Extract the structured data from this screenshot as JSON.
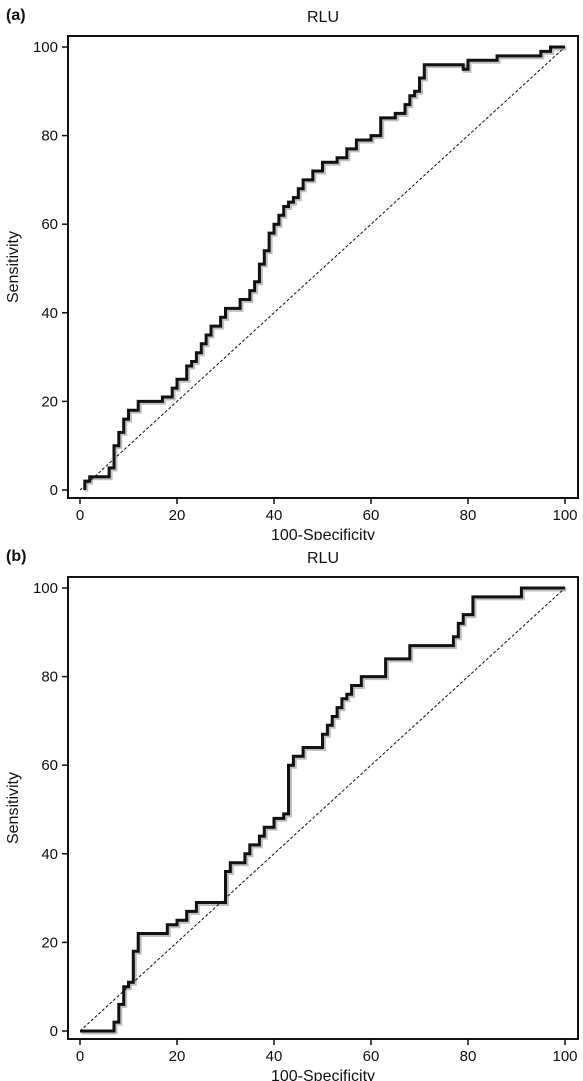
{
  "chart_data": [
    {
      "type": "line",
      "panel_label": "(a)",
      "title": "RLU",
      "xlabel": "100-Specificity",
      "ylabel": "Sensitivity",
      "xlim": [
        0,
        100
      ],
      "ylim": [
        0,
        100
      ],
      "xticks": [
        0,
        20,
        40,
        60,
        80,
        100
      ],
      "yticks": [
        0,
        20,
        40,
        60,
        80,
        100
      ],
      "reference_line": {
        "x": [
          0,
          100
        ],
        "y": [
          0,
          100
        ],
        "style": "dashed"
      },
      "series": [
        {
          "x": [
            1,
            1,
            2,
            2,
            6,
            6,
            7,
            7,
            8,
            8,
            9,
            9,
            10,
            10,
            12,
            12,
            17,
            17,
            19,
            19,
            20,
            20,
            22,
            22,
            23,
            23,
            24,
            24,
            25,
            25,
            26,
            26,
            27,
            27,
            29,
            29,
            30,
            30,
            33,
            33,
            35,
            35,
            36,
            36,
            37,
            37,
            38,
            38,
            39,
            39,
            40,
            40,
            41,
            41,
            42,
            42,
            43,
            43,
            44,
            44,
            45,
            45,
            46,
            46,
            48,
            48,
            50,
            50,
            53,
            53,
            55,
            55,
            57,
            57,
            60,
            60,
            62,
            62,
            65,
            65,
            67,
            67,
            68,
            68,
            69,
            69,
            70,
            70,
            71,
            71,
            79,
            79,
            80,
            80,
            86,
            86,
            95,
            95,
            97,
            97,
            100
          ],
          "y": [
            0,
            2,
            2,
            3,
            3,
            5,
            5,
            10,
            10,
            13,
            13,
            16,
            16,
            18,
            18,
            20,
            20,
            21,
            21,
            23,
            23,
            25,
            25,
            28,
            28,
            29,
            29,
            31,
            31,
            33,
            33,
            35,
            35,
            37,
            37,
            39,
            39,
            41,
            41,
            43,
            43,
            45,
            45,
            47,
            47,
            51,
            51,
            54,
            54,
            58,
            58,
            60,
            60,
            62,
            62,
            64,
            64,
            65,
            65,
            66,
            66,
            68,
            68,
            70,
            70,
            72,
            72,
            74,
            74,
            75,
            75,
            77,
            77,
            79,
            79,
            80,
            80,
            84,
            84,
            85,
            85,
            87,
            87,
            89,
            89,
            90,
            90,
            93,
            93,
            96,
            96,
            95,
            95,
            97,
            97,
            98,
            98,
            99,
            99,
            100,
            100
          ]
        }
      ]
    },
    {
      "type": "line",
      "panel_label": "(b)",
      "title": "RLU",
      "xlabel": "100-Specificity",
      "ylabel": "Sensitivity",
      "xlim": [
        0,
        100
      ],
      "ylim": [
        0,
        100
      ],
      "xticks": [
        0,
        20,
        40,
        60,
        80,
        100
      ],
      "yticks": [
        0,
        20,
        40,
        60,
        80,
        100
      ],
      "reference_line": {
        "x": [
          0,
          100
        ],
        "y": [
          0,
          100
        ],
        "style": "dashed"
      },
      "series": [
        {
          "x": [
            0,
            7,
            7,
            8,
            8,
            9,
            9,
            10,
            10,
            11,
            11,
            12,
            12,
            18,
            18,
            20,
            20,
            22,
            22,
            24,
            24,
            30,
            30,
            31,
            31,
            34,
            34,
            35,
            35,
            37,
            37,
            38,
            38,
            40,
            40,
            42,
            42,
            43,
            43,
            44,
            44,
            46,
            46,
            50,
            50,
            51,
            51,
            52,
            52,
            53,
            53,
            54,
            54,
            55,
            55,
            56,
            56,
            58,
            58,
            63,
            63,
            68,
            68,
            77,
            77,
            78,
            78,
            79,
            79,
            81,
            81,
            91,
            91,
            100
          ],
          "y": [
            0,
            0,
            2,
            2,
            6,
            6,
            10,
            10,
            11,
            11,
            18,
            18,
            22,
            22,
            24,
            24,
            25,
            25,
            27,
            27,
            29,
            29,
            36,
            36,
            38,
            38,
            40,
            40,
            42,
            42,
            44,
            44,
            46,
            46,
            48,
            48,
            49,
            49,
            60,
            60,
            62,
            62,
            64,
            64,
            67,
            67,
            69,
            69,
            71,
            71,
            73,
            73,
            75,
            75,
            76,
            76,
            78,
            78,
            80,
            80,
            84,
            84,
            87,
            87,
            89,
            89,
            92,
            92,
            94,
            94,
            98,
            98,
            100,
            100
          ]
        }
      ]
    }
  ]
}
